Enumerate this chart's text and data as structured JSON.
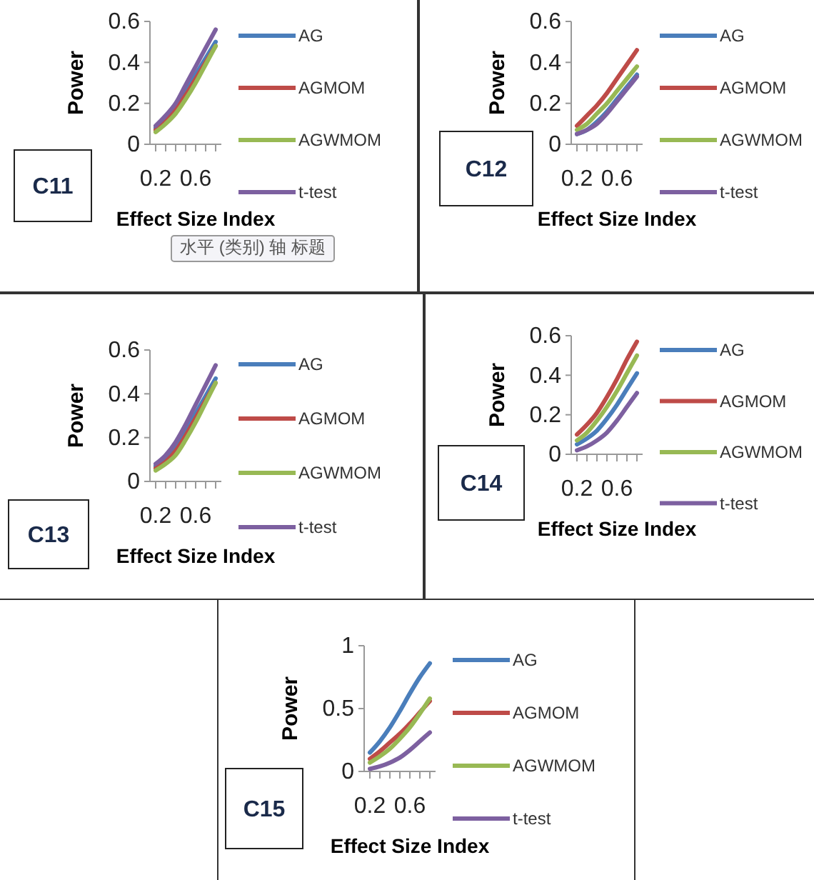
{
  "chart_data": [
    {
      "type": "line",
      "ylabel": "Power",
      "xlabel": "Effect Size Index",
      "annotations": [
        "C11",
        "水平 (类别) 轴 标题"
      ],
      "legend": "right",
      "categories": [
        "0.2",
        null,
        null,
        null,
        "0.6",
        null,
        null
      ],
      "ylim": [
        0,
        0.6
      ],
      "yticks": [
        0,
        0.2,
        0.4,
        0.6
      ],
      "series": [
        {
          "name": "AG",
          "color": "#4a7ebb",
          "values": [
            0.08,
            0.12,
            0.18,
            0.26,
            0.34,
            0.42,
            0.5
          ]
        },
        {
          "name": "AGMOM",
          "color": "#be4b48",
          "values": [
            0.07,
            0.11,
            0.17,
            0.24,
            0.32,
            0.4,
            0.48
          ]
        },
        {
          "name": "AGWMOM",
          "color": "#98b954",
          "values": [
            0.06,
            0.1,
            0.15,
            0.22,
            0.3,
            0.39,
            0.48
          ]
        },
        {
          "name": "t-test",
          "color": "#7d60a0",
          "values": [
            0.09,
            0.14,
            0.2,
            0.29,
            0.38,
            0.47,
            0.56
          ]
        }
      ]
    },
    {
      "type": "line",
      "ylabel": "Power",
      "xlabel": "Effect Size Index",
      "annotations": [
        "C12"
      ],
      "legend": "right",
      "categories": [
        "0.2",
        null,
        null,
        null,
        "0.6",
        null,
        null
      ],
      "ylim": [
        0,
        0.6
      ],
      "yticks": [
        0,
        0.2,
        0.4,
        0.6
      ],
      "series": [
        {
          "name": "AG",
          "color": "#4a7ebb",
          "values": [
            0.05,
            0.07,
            0.11,
            0.16,
            0.22,
            0.28,
            0.34
          ]
        },
        {
          "name": "AGMOM",
          "color": "#be4b48",
          "values": [
            0.09,
            0.14,
            0.19,
            0.25,
            0.32,
            0.39,
            0.46
          ]
        },
        {
          "name": "AGWMOM",
          "color": "#98b954",
          "values": [
            0.07,
            0.1,
            0.15,
            0.2,
            0.26,
            0.32,
            0.38
          ]
        },
        {
          "name": "t-test",
          "color": "#7d60a0",
          "values": [
            0.05,
            0.07,
            0.1,
            0.15,
            0.21,
            0.27,
            0.33
          ]
        }
      ]
    },
    {
      "type": "line",
      "ylabel": "Power",
      "xlabel": "Effect Size Index",
      "annotations": [
        "C13"
      ],
      "legend": "right",
      "categories": [
        "0.2",
        null,
        null,
        null,
        "0.6",
        null,
        null
      ],
      "ylim": [
        0,
        0.6
      ],
      "yticks": [
        0,
        0.2,
        0.4,
        0.6
      ],
      "series": [
        {
          "name": "AG",
          "color": "#4a7ebb",
          "values": [
            0.07,
            0.11,
            0.16,
            0.23,
            0.31,
            0.39,
            0.47
          ]
        },
        {
          "name": "AGMOM",
          "color": "#be4b48",
          "values": [
            0.06,
            0.09,
            0.14,
            0.21,
            0.29,
            0.37,
            0.45
          ]
        },
        {
          "name": "AGWMOM",
          "color": "#98b954",
          "values": [
            0.05,
            0.08,
            0.12,
            0.19,
            0.27,
            0.36,
            0.45
          ]
        },
        {
          "name": "t-test",
          "color": "#7d60a0",
          "values": [
            0.08,
            0.12,
            0.18,
            0.26,
            0.35,
            0.44,
            0.53
          ]
        }
      ]
    },
    {
      "type": "line",
      "ylabel": "Power",
      "xlabel": "Effect Size Index",
      "annotations": [
        "C14"
      ],
      "legend": "right",
      "categories": [
        "0.2",
        null,
        null,
        null,
        "0.6",
        null,
        null
      ],
      "ylim": [
        0,
        0.6
      ],
      "yticks": [
        0,
        0.2,
        0.4,
        0.6
      ],
      "series": [
        {
          "name": "AG",
          "color": "#4a7ebb",
          "values": [
            0.05,
            0.08,
            0.12,
            0.18,
            0.25,
            0.33,
            0.41
          ]
        },
        {
          "name": "AGMOM",
          "color": "#be4b48",
          "values": [
            0.1,
            0.15,
            0.21,
            0.29,
            0.38,
            0.48,
            0.57
          ]
        },
        {
          "name": "AGWMOM",
          "color": "#98b954",
          "values": [
            0.07,
            0.11,
            0.17,
            0.24,
            0.32,
            0.41,
            0.5
          ]
        },
        {
          "name": "t-test",
          "color": "#7d60a0",
          "values": [
            0.02,
            0.04,
            0.07,
            0.11,
            0.17,
            0.24,
            0.31
          ]
        }
      ]
    },
    {
      "type": "line",
      "ylabel": "Power",
      "xlabel": "Effect Size Index",
      "annotations": [
        "C15"
      ],
      "legend": "right",
      "categories": [
        "0.2",
        null,
        null,
        null,
        "0.6",
        null,
        null
      ],
      "ylim": [
        0,
        1
      ],
      "yticks": [
        0,
        0.5,
        1
      ],
      "series": [
        {
          "name": "AG",
          "color": "#4a7ebb",
          "values": [
            0.15,
            0.24,
            0.35,
            0.48,
            0.62,
            0.75,
            0.86
          ]
        },
        {
          "name": "AGMOM",
          "color": "#be4b48",
          "values": [
            0.1,
            0.16,
            0.23,
            0.3,
            0.38,
            0.47,
            0.56
          ]
        },
        {
          "name": "AGWMOM",
          "color": "#98b954",
          "values": [
            0.07,
            0.12,
            0.18,
            0.26,
            0.35,
            0.46,
            0.58
          ]
        },
        {
          "name": "t-test",
          "color": "#7d60a0",
          "values": [
            0.02,
            0.04,
            0.07,
            0.11,
            0.17,
            0.24,
            0.31
          ]
        }
      ]
    }
  ]
}
